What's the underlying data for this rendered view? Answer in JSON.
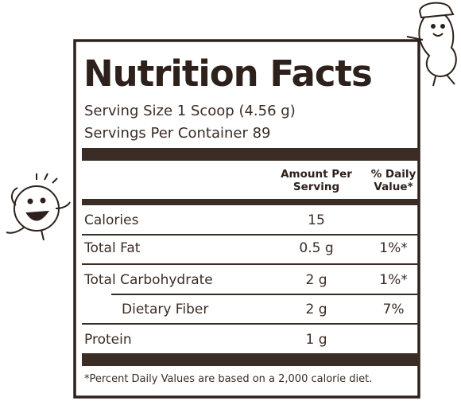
{
  "title": "Nutrition Facts",
  "serving_size": "Serving Size 1 Scoop (4.56 g)",
  "servings_per_container": "Servings Per Container 89",
  "table": {
    "headers": [
      "Amount Per Serving",
      "% Daily Value*"
    ],
    "rows": [
      {
        "name": "Calories",
        "amount": "15"
      },
      {
        "name": "Total Fat",
        "amount": "0.5 g",
        "daily_value": "1%*"
      },
      {
        "name": "Total Carbohydrate",
        "amount": "2 g",
        "daily_value": "1%*"
      },
      {
        "name": "Dietary Fiber",
        "amount": "2 g",
        "daily_value": "7%"
      },
      {
        "name": "Protein",
        "amount": "1 g"
      }
    ]
  },
  "footnote": "*Percent Daily Values are based on a 2,000 calorie diet."
}
